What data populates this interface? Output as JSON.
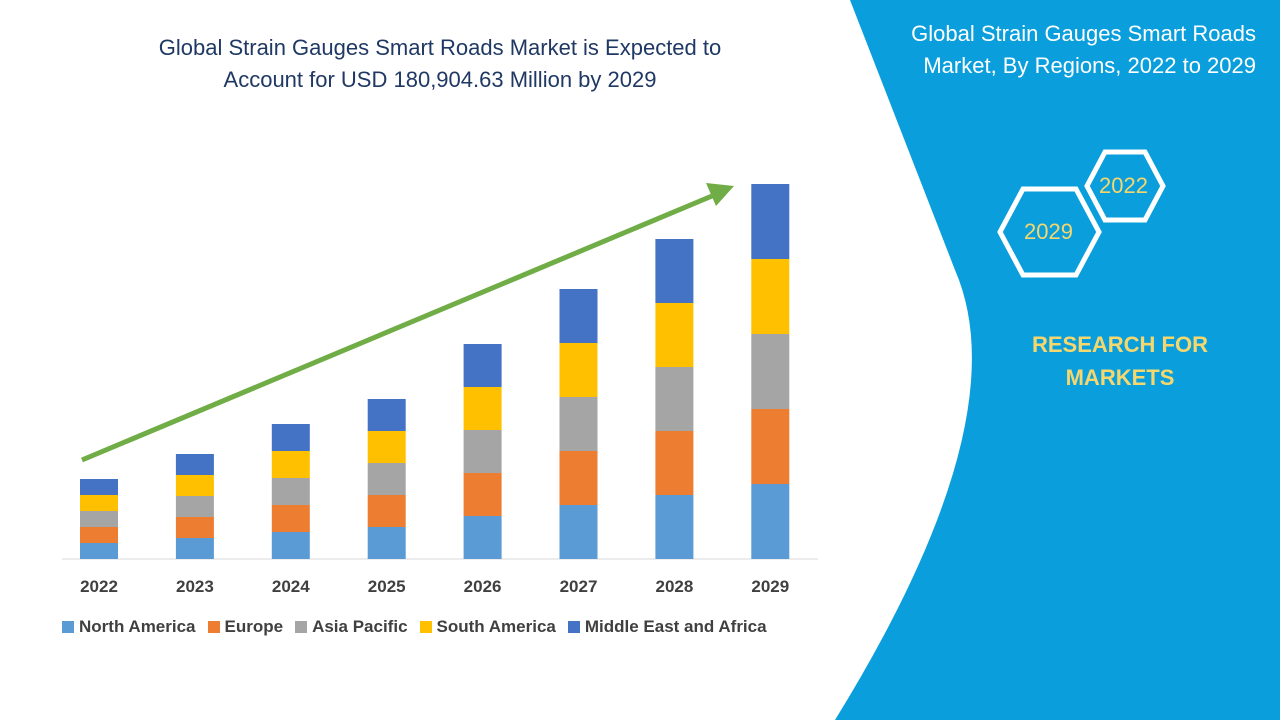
{
  "header": {
    "title_line1": "Global Strain Gauges Smart Roads Market is Expected to",
    "title_line2": "Account for USD 180,904.63 Million by 2029"
  },
  "side_panel": {
    "title": "Global Strain Gauges Smart Roads Market, By Regions, 2022 to 2029",
    "hex_start": "2022",
    "hex_end": "2029",
    "brand_line1": "RESEARCH FOR",
    "brand_line2": "MARKETS",
    "panel_color": "#0a9fdc",
    "brand_color": "#f5d76e"
  },
  "chart_data": {
    "type": "bar",
    "stacked": true,
    "title": "",
    "categories": [
      "2022",
      "2023",
      "2024",
      "2025",
      "2026",
      "2027",
      "2028",
      "2029"
    ],
    "series": [
      {
        "name": "North America",
        "color": "#5b9bd5",
        "values": [
          16,
          21,
          27,
          32,
          43,
          54,
          64,
          75
        ]
      },
      {
        "name": "Europe",
        "color": "#ed7d31",
        "values": [
          16,
          21,
          27,
          32,
          43,
          54,
          64,
          75
        ]
      },
      {
        "name": "Asia Pacific",
        "color": "#a5a5a5",
        "values": [
          16,
          21,
          27,
          32,
          43,
          54,
          64,
          75
        ]
      },
      {
        "name": "South America",
        "color": "#ffc000",
        "values": [
          16,
          21,
          27,
          32,
          43,
          54,
          64,
          75
        ]
      },
      {
        "name": "Middle East and Africa",
        "color": "#4472c4",
        "values": [
          16,
          21,
          27,
          32,
          43,
          54,
          64,
          75
        ]
      }
    ],
    "ylim": [
      0,
      375
    ],
    "y_axis_shown": false,
    "grid": false,
    "legend": "bottom",
    "trend_arrow_color": "#70ad47"
  }
}
